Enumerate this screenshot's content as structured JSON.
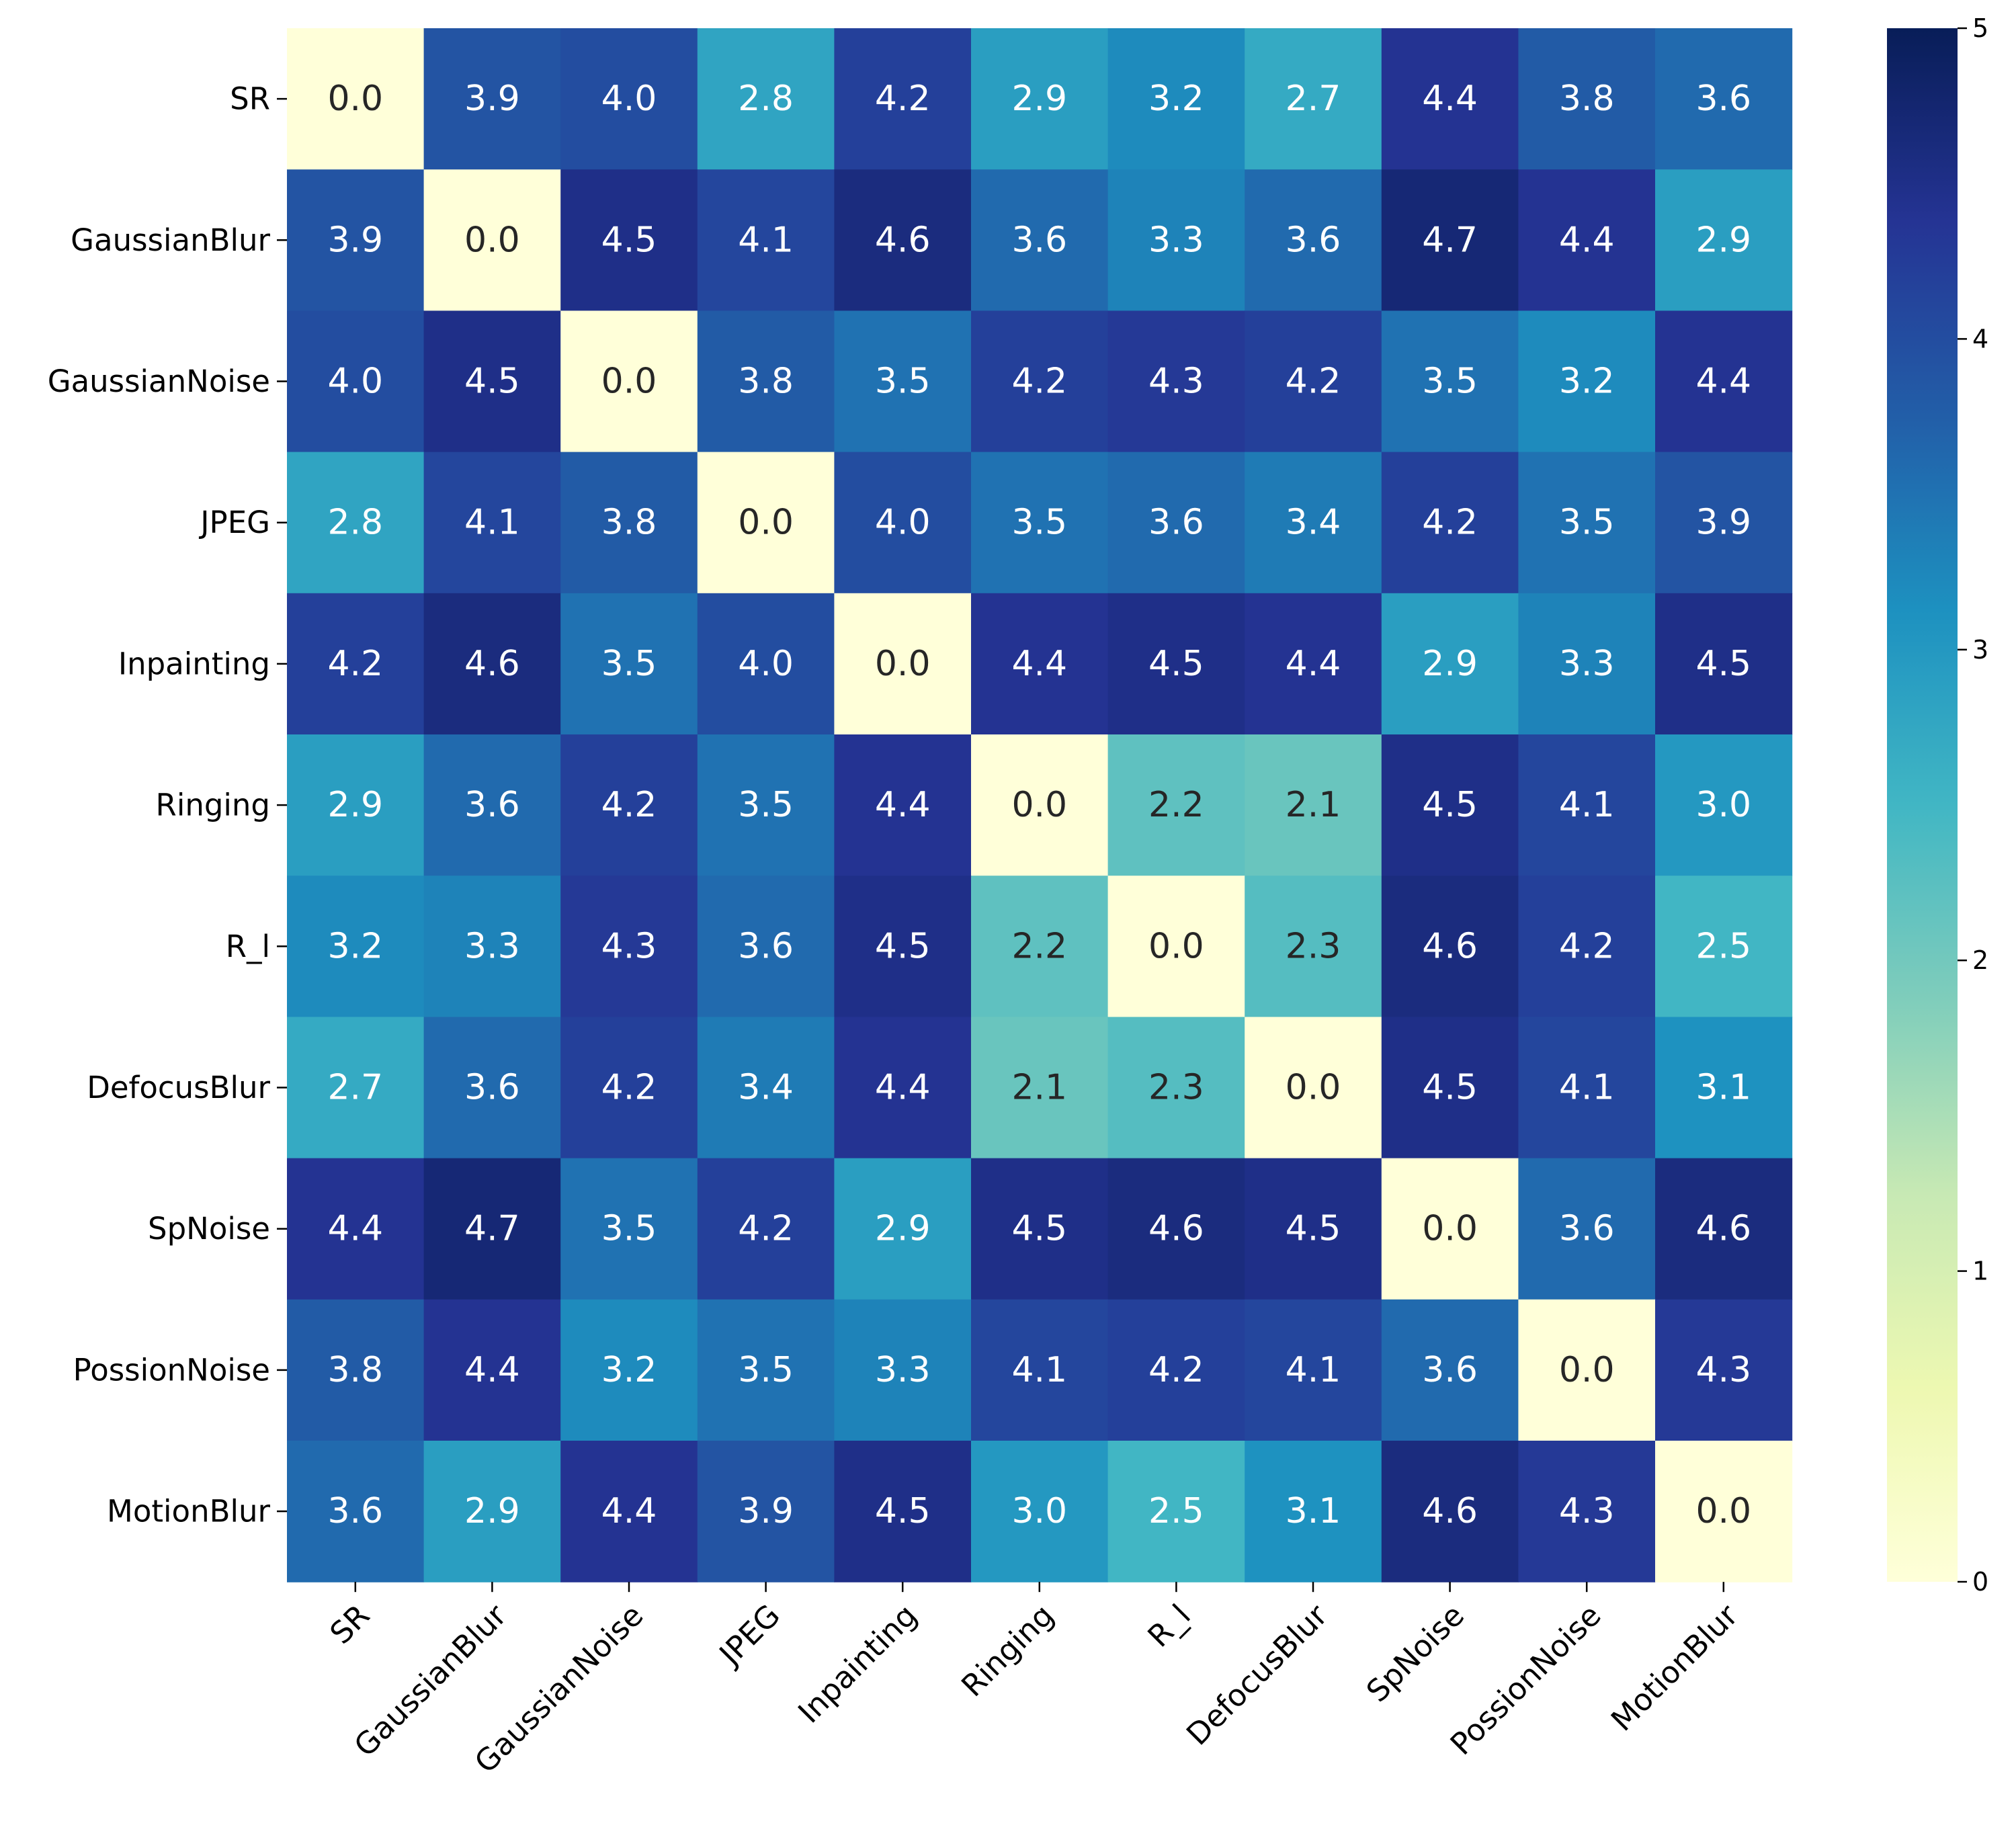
{
  "chart_data": {
    "type": "heatmap",
    "title": "",
    "xlabel": "",
    "ylabel": "",
    "x_categories": [
      "SR",
      "GaussianBlur",
      "GaussianNoise",
      "JPEG",
      "Inpainting",
      "Ringing",
      "R_l",
      "DefocusBlur",
      "SpNoise",
      "PossionNoise",
      "MotionBlur"
    ],
    "y_categories": [
      "SR",
      "GaussianBlur",
      "GaussianNoise",
      "JPEG",
      "Inpainting",
      "Ringing",
      "R_l",
      "DefocusBlur",
      "SpNoise",
      "PossionNoise",
      "MotionBlur"
    ],
    "values": [
      [
        0.0,
        3.9,
        4.0,
        2.8,
        4.2,
        2.9,
        3.2,
        2.7,
        4.4,
        3.8,
        3.6
      ],
      [
        3.9,
        0.0,
        4.5,
        4.1,
        4.6,
        3.6,
        3.3,
        3.6,
        4.7,
        4.4,
        2.9
      ],
      [
        4.0,
        4.5,
        0.0,
        3.8,
        3.5,
        4.2,
        4.3,
        4.2,
        3.5,
        3.2,
        4.4
      ],
      [
        2.8,
        4.1,
        3.8,
        0.0,
        4.0,
        3.5,
        3.6,
        3.4,
        4.2,
        3.5,
        3.9
      ],
      [
        4.2,
        4.6,
        3.5,
        4.0,
        0.0,
        4.4,
        4.5,
        4.4,
        2.9,
        3.3,
        4.5
      ],
      [
        2.9,
        3.6,
        4.2,
        3.5,
        4.4,
        0.0,
        2.2,
        2.1,
        4.5,
        4.1,
        3.0
      ],
      [
        3.2,
        3.3,
        4.3,
        3.6,
        4.5,
        2.2,
        0.0,
        2.3,
        4.6,
        4.2,
        2.5
      ],
      [
        2.7,
        3.6,
        4.2,
        3.4,
        4.4,
        2.1,
        2.3,
        0.0,
        4.5,
        4.1,
        3.1
      ],
      [
        4.4,
        4.7,
        3.5,
        4.2,
        2.9,
        4.5,
        4.6,
        4.5,
        0.0,
        3.6,
        4.6
      ],
      [
        3.8,
        4.4,
        3.2,
        3.5,
        3.3,
        4.1,
        4.2,
        4.1,
        3.6,
        0.0,
        4.3
      ],
      [
        3.6,
        2.9,
        4.4,
        3.9,
        4.5,
        3.0,
        2.5,
        3.1,
        4.6,
        4.3,
        0.0
      ]
    ],
    "value_format": "0.0",
    "colormap": "YlGnBu",
    "colormap_stops": [
      "#ffffd9",
      "#edf8b1",
      "#c7e9b4",
      "#7fcdbb",
      "#41b6c4",
      "#1d91c0",
      "#225ea8",
      "#253494",
      "#081d58"
    ],
    "vmin": 0,
    "vmax": 5,
    "colorbar_ticks": [
      "0",
      "1",
      "2",
      "3",
      "4",
      "5"
    ],
    "annotation_colors": {
      "light": "#ffffff",
      "dark": "#262626"
    }
  }
}
